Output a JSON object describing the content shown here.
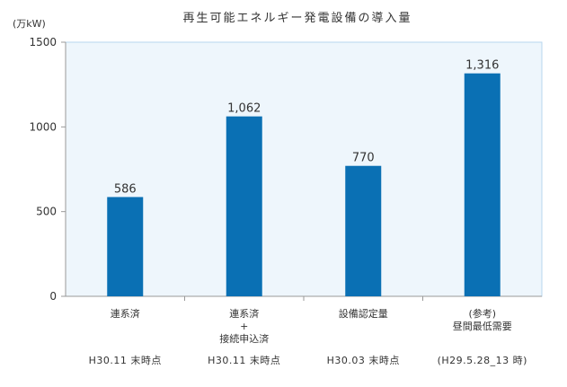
{
  "chart_data": {
    "type": "bar",
    "title": "再生可能エネルギー発電設備の導入量",
    "unit": "(万kW)",
    "ylim": [
      0,
      1500
    ],
    "yticks": [
      0,
      500,
      1000,
      1500
    ],
    "grid": false,
    "categories": [
      {
        "lines": [
          "連系済"
        ],
        "date": "H30.11 末時点"
      },
      {
        "lines": [
          "連系済",
          "+",
          "接続申込済"
        ],
        "date": "H30.11 末時点"
      },
      {
        "lines": [
          "設備認定量"
        ],
        "date": "H30.03 末時点"
      },
      {
        "lines": [
          "(参考)",
          "昼間最低需要"
        ],
        "date": "(H29.5.28_13 時)"
      }
    ],
    "values": [
      586,
      1062,
      770,
      1316
    ],
    "value_labels": [
      "586",
      "1,062",
      "770",
      "1,316"
    ]
  },
  "colors": {
    "bar": "#0a70b4",
    "plot_bg": "#eef6fc",
    "plot_border": "#b7d6ee",
    "axis": "#999999",
    "text": "#333333"
  }
}
